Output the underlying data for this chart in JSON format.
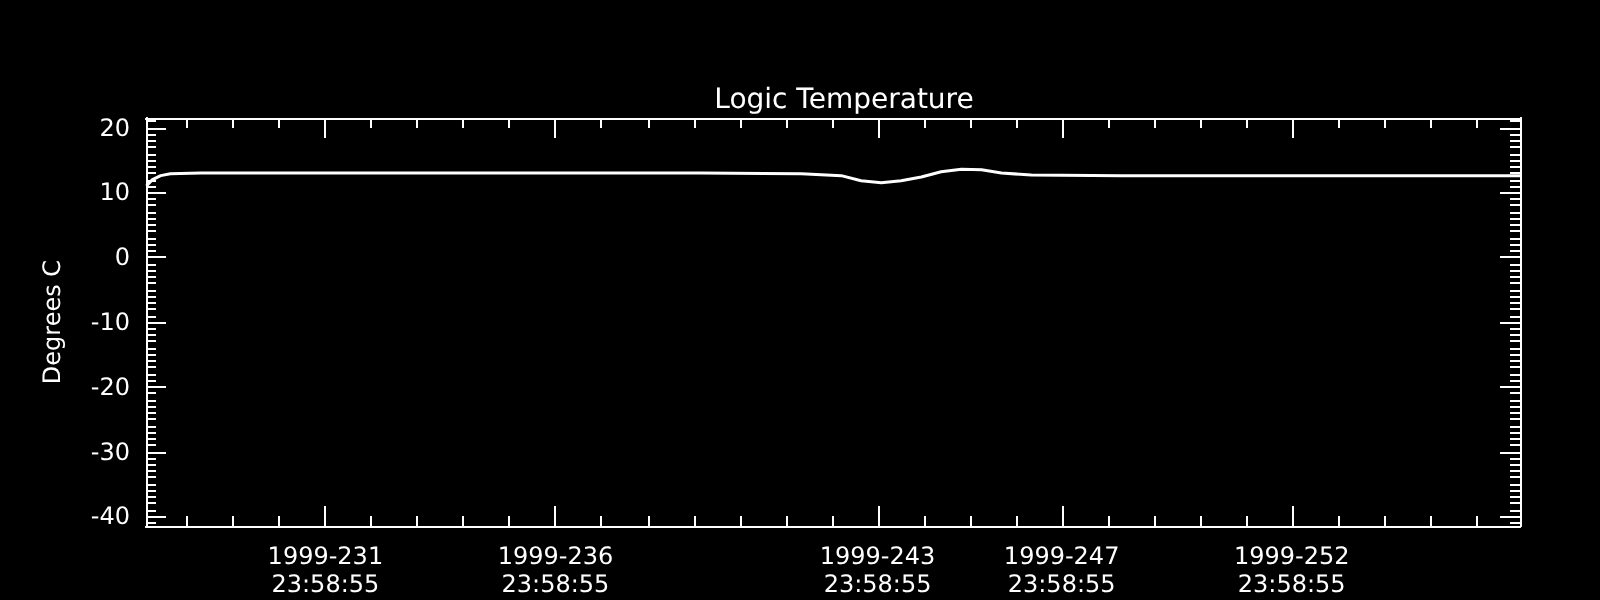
{
  "chart_data": {
    "type": "line",
    "title": "Logic Temperature",
    "ylabel": "Degrees C",
    "x": [
      "1999-08-16T02:38",
      "1999-08-16T05:46",
      "1999-08-16T10:05",
      "1999-08-16T15:07",
      "1999-08-17T06:58",
      "1999-08-21T15:22",
      "1999-08-25T23:46",
      "1999-08-28T03:50",
      "1999-08-30T08:10",
      "1999-08-31T05:02",
      "1999-08-31T15:22",
      "1999-09-01T01:55",
      "1999-09-01T12:14",
      "1999-09-01T22:48",
      "1999-09-02T09:07",
      "1999-09-02T19:41",
      "1999-09-03T06:14",
      "1999-09-03T16:34",
      "1999-09-04T08:10",
      "1999-09-06T07:12",
      "1999-09-08T00:58",
      "1999-09-12T09:22",
      "1999-09-14T23:02"
    ],
    "series": [
      {
        "color": "#ffffff",
        "values": [
          11.0,
          12.0,
          12.6,
          12.9,
          13.0,
          13.0,
          13.0,
          13.0,
          12.9,
          12.6,
          11.8,
          11.5,
          11.8,
          12.4,
          13.2,
          13.6,
          13.5,
          13.0,
          12.7,
          12.6,
          12.6,
          12.6,
          12.6
        ]
      }
    ],
    "xlim": [
      "1999-08-16T02:24",
      "1999-09-14T23:02"
    ],
    "xticks": [
      {
        "value": "1999-08-16T23:58",
        "label": null
      },
      {
        "value": "1999-08-17T23:58",
        "label": null
      },
      {
        "value": "1999-08-18T23:58",
        "label": null
      },
      {
        "value": "1999-08-19T23:58",
        "label": "1999-231\n23:58:55"
      },
      {
        "value": "1999-08-20T23:58",
        "label": null
      },
      {
        "value": "1999-08-21T23:58",
        "label": null
      },
      {
        "value": "1999-08-22T23:58",
        "label": null
      },
      {
        "value": "1999-08-23T23:58",
        "label": null
      },
      {
        "value": "1999-08-24T23:58",
        "label": "1999-236\n23:58:55"
      },
      {
        "value": "1999-08-25T23:58",
        "label": null
      },
      {
        "value": "1999-08-26T23:58",
        "label": null
      },
      {
        "value": "1999-08-27T23:58",
        "label": null
      },
      {
        "value": "1999-08-28T23:58",
        "label": null
      },
      {
        "value": "1999-08-29T23:58",
        "label": null
      },
      {
        "value": "1999-08-30T23:58",
        "label": null
      },
      {
        "value": "1999-08-31T23:58",
        "label": "1999-243\n23:58:55"
      },
      {
        "value": "1999-09-01T23:58",
        "label": null
      },
      {
        "value": "1999-09-02T23:58",
        "label": null
      },
      {
        "value": "1999-09-03T23:58",
        "label": null
      },
      {
        "value": "1999-09-04T23:58",
        "label": "1999-247\n23:58:55"
      },
      {
        "value": "1999-09-05T23:58",
        "label": null
      },
      {
        "value": "1999-09-06T23:58",
        "label": null
      },
      {
        "value": "1999-09-07T23:58",
        "label": null
      },
      {
        "value": "1999-09-08T23:58",
        "label": null
      },
      {
        "value": "1999-09-09T23:58",
        "label": "1999-252\n23:58:55"
      },
      {
        "value": "1999-09-10T23:58",
        "label": null
      },
      {
        "value": "1999-09-11T23:58",
        "label": null
      },
      {
        "value": "1999-09-12T23:58",
        "label": null
      },
      {
        "value": "1999-09-13T23:58",
        "label": null
      }
    ],
    "ylim": [
      -41.5,
      21.5
    ],
    "yticks": [
      {
        "value": -41,
        "label": null
      },
      -40,
      {
        "value": -39,
        "label": null
      },
      {
        "value": -38,
        "label": null
      },
      {
        "value": -37,
        "label": null
      },
      {
        "value": -36,
        "label": null
      },
      {
        "value": -35,
        "label": null
      },
      {
        "value": -34,
        "label": null
      },
      {
        "value": -33,
        "label": null
      },
      {
        "value": -32,
        "label": null
      },
      {
        "value": -31,
        "label": null
      },
      -30,
      {
        "value": -29,
        "label": null
      },
      {
        "value": -28,
        "label": null
      },
      {
        "value": -27,
        "label": null
      },
      {
        "value": -26,
        "label": null
      },
      {
        "value": -25,
        "label": null
      },
      {
        "value": -24,
        "label": null
      },
      {
        "value": -23,
        "label": null
      },
      {
        "value": -22,
        "label": null
      },
      {
        "value": -21,
        "label": null
      },
      -20,
      {
        "value": -19,
        "label": null
      },
      {
        "value": -18,
        "label": null
      },
      {
        "value": -17,
        "label": null
      },
      {
        "value": -16,
        "label": null
      },
      {
        "value": -15,
        "label": null
      },
      {
        "value": -14,
        "label": null
      },
      {
        "value": -13,
        "label": null
      },
      {
        "value": -12,
        "label": null
      },
      {
        "value": -11,
        "label": null
      },
      -10,
      {
        "value": -9,
        "label": null
      },
      {
        "value": -8,
        "label": null
      },
      {
        "value": -7,
        "label": null
      },
      {
        "value": -6,
        "label": null
      },
      {
        "value": -5,
        "label": null
      },
      {
        "value": -4,
        "label": null
      },
      {
        "value": -3,
        "label": null
      },
      {
        "value": -2,
        "label": null
      },
      {
        "value": -1,
        "label": null
      },
      0,
      {
        "value": 1,
        "label": null
      },
      {
        "value": 2,
        "label": null
      },
      {
        "value": 3,
        "label": null
      },
      {
        "value": 4,
        "label": null
      },
      {
        "value": 5,
        "label": null
      },
      {
        "value": 6,
        "label": null
      },
      {
        "value": 7,
        "label": null
      },
      {
        "value": 8,
        "label": null
      },
      {
        "value": 9,
        "label": null
      },
      10,
      {
        "value": 11,
        "label": null
      },
      {
        "value": 12,
        "label": null
      },
      {
        "value": 13,
        "label": null
      },
      {
        "value": 14,
        "label": null
      },
      {
        "value": 15,
        "label": null
      },
      {
        "value": 16,
        "label": null
      },
      {
        "value": 17,
        "label": null
      },
      {
        "value": 18,
        "label": null
      },
      {
        "value": 19,
        "label": null
      },
      20,
      {
        "value": 21,
        "label": null
      }
    ],
    "grid": false,
    "marker": "none",
    "line_style": "solid"
  }
}
